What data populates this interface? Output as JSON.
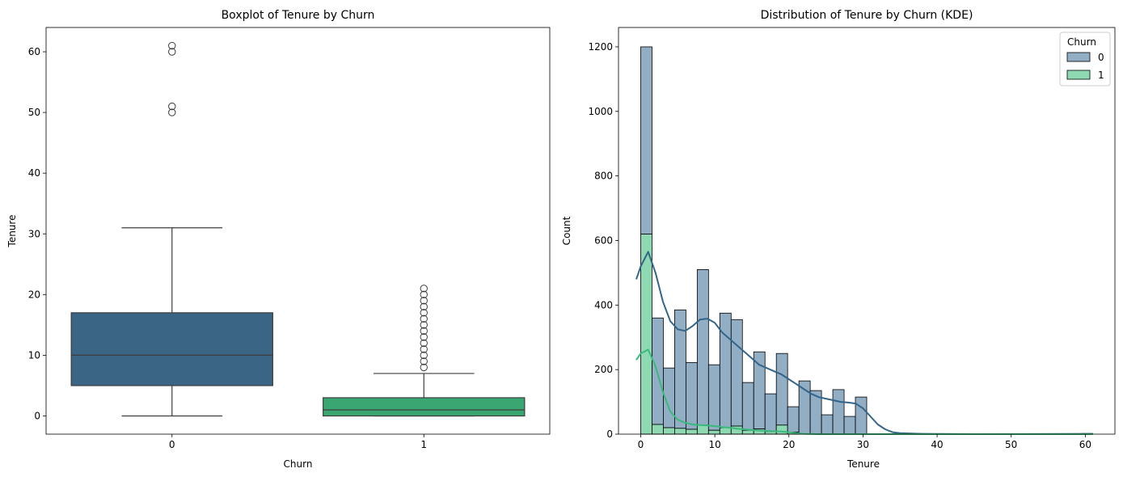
{
  "chart_data": [
    {
      "type": "box",
      "title": "Boxplot of Tenure by Churn",
      "xlabel": "Churn",
      "ylabel": "Tenure",
      "ylim": [
        -3,
        64
      ],
      "y_ticks": [
        0,
        10,
        20,
        30,
        40,
        50,
        60
      ],
      "categories": [
        "0",
        "1"
      ],
      "colors": [
        "#3b6584",
        "#3aa672"
      ],
      "boxes": [
        {
          "category": "0",
          "whisker_low": 0,
          "q1": 5,
          "median": 10,
          "q3": 17,
          "whisker_high": 31,
          "outliers": [
            50,
            51,
            60,
            61
          ]
        },
        {
          "category": "1",
          "whisker_low": 0,
          "q1": 0,
          "median": 1,
          "q3": 3,
          "whisker_high": 7,
          "outliers": [
            8,
            9,
            10,
            11,
            12,
            13,
            14,
            15,
            16,
            17,
            18,
            19,
            20,
            21
          ]
        }
      ]
    },
    {
      "type": "histogram",
      "title": "Distribution of Tenure by Churn (KDE)",
      "xlabel": "Tenure",
      "ylabel": "Count",
      "xlim": [
        -3,
        64
      ],
      "ylim": [
        0,
        1260
      ],
      "x_ticks": [
        0,
        10,
        20,
        30,
        40,
        50,
        60
      ],
      "y_ticks": [
        0,
        200,
        400,
        600,
        800,
        1000,
        1200
      ],
      "legend": {
        "title": "Churn",
        "entries": [
          "0",
          "1"
        ],
        "placement": "top-right"
      },
      "bin_start": 0,
      "bin_width": 1.525,
      "series": [
        {
          "name": "0",
          "color": "#91aec4",
          "line_color": "#33658a",
          "stacked_totals": [
            1200,
            360,
            205,
            385,
            222,
            510,
            215,
            375,
            355,
            160,
            255,
            125,
            250,
            85,
            165,
            135,
            60,
            138,
            55,
            115,
            0,
            0,
            0,
            0,
            0,
            0,
            0,
            0,
            0,
            0,
            0,
            0,
            0,
            0,
            0,
            0,
            0,
            0,
            0,
            2
          ],
          "kde": [
            [
              -0.6,
              480
            ],
            [
              0,
              520
            ],
            [
              1,
              565
            ],
            [
              2,
              500
            ],
            [
              3,
              410
            ],
            [
              4,
              350
            ],
            [
              5,
              325
            ],
            [
              6,
              320
            ],
            [
              7,
              335
            ],
            [
              8,
              355
            ],
            [
              9,
              358
            ],
            [
              10,
              345
            ],
            [
              11,
              315
            ],
            [
              12,
              295
            ],
            [
              13,
              275
            ],
            [
              14,
              255
            ],
            [
              15,
              235
            ],
            [
              16,
              215
            ],
            [
              17,
              205
            ],
            [
              18,
              195
            ],
            [
              19,
              185
            ],
            [
              20,
              170
            ],
            [
              21,
              155
            ],
            [
              22,
              140
            ],
            [
              23,
              125
            ],
            [
              24,
              115
            ],
            [
              25,
              110
            ],
            [
              26,
              105
            ],
            [
              27,
              100
            ],
            [
              28,
              98
            ],
            [
              29,
              95
            ],
            [
              30,
              80
            ],
            [
              31,
              55
            ],
            [
              32,
              30
            ],
            [
              33,
              15
            ],
            [
              34,
              6
            ],
            [
              35,
              3
            ],
            [
              38,
              1
            ],
            [
              45,
              0
            ],
            [
              61,
              1
            ]
          ]
        },
        {
          "name": "1",
          "color": "#8ed8b2",
          "line_color": "#3bb97d",
          "counts": [
            620,
            30,
            20,
            18,
            15,
            28,
            12,
            20,
            25,
            12,
            16,
            8,
            28,
            6,
            0,
            0,
            0,
            0,
            0,
            0,
            0,
            0,
            0,
            0,
            0,
            0,
            0,
            0,
            0,
            0,
            0,
            0,
            0,
            0,
            0,
            0,
            0,
            0,
            0,
            0
          ],
          "kde": [
            [
              -0.6,
              230
            ],
            [
              0,
              250
            ],
            [
              1,
              262
            ],
            [
              2,
              210
            ],
            [
              3,
              130
            ],
            [
              4,
              70
            ],
            [
              5,
              45
            ],
            [
              6,
              35
            ],
            [
              7,
              30
            ],
            [
              8,
              28
            ],
            [
              9,
              27
            ],
            [
              10,
              25
            ],
            [
              11,
              22
            ],
            [
              12,
              20
            ],
            [
              13,
              17
            ],
            [
              14,
              15
            ],
            [
              15,
              13
            ],
            [
              16,
              11
            ],
            [
              17,
              10
            ],
            [
              18,
              9
            ],
            [
              19,
              8
            ],
            [
              20,
              6
            ],
            [
              21,
              3
            ],
            [
              22,
              1
            ],
            [
              24,
              0
            ],
            [
              61,
              0
            ]
          ]
        }
      ]
    }
  ]
}
